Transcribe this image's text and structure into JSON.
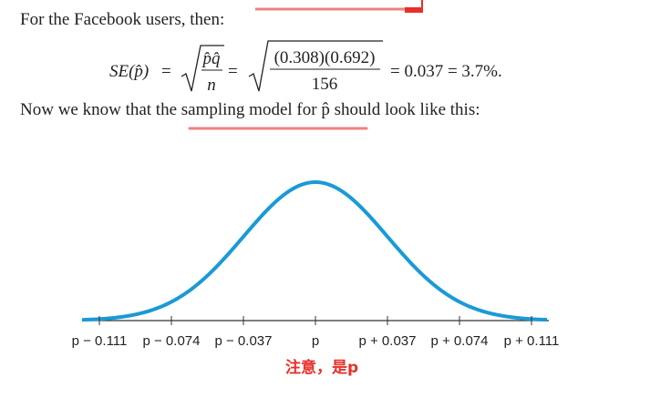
{
  "intro": "For the Facebook users, then:",
  "formula": {
    "lhs": "SE(p̂)",
    "eq1": "=",
    "frac1_num": "p̂q̂",
    "frac1_den": "n",
    "eq2": "=",
    "frac2_num": "(0.308)(0.692)",
    "frac2_den": "156",
    "result": "= 0.037 = 3.7%."
  },
  "sentence": "Now we know that the sampling model for p̂ should look like this:",
  "axis_labels": [
    "p − 0.111",
    "p − 0.074",
    "p − 0.037",
    "p",
    "p + 0.037",
    "p + 0.074",
    "p + 0.111"
  ],
  "note": "注意，是p"
}
